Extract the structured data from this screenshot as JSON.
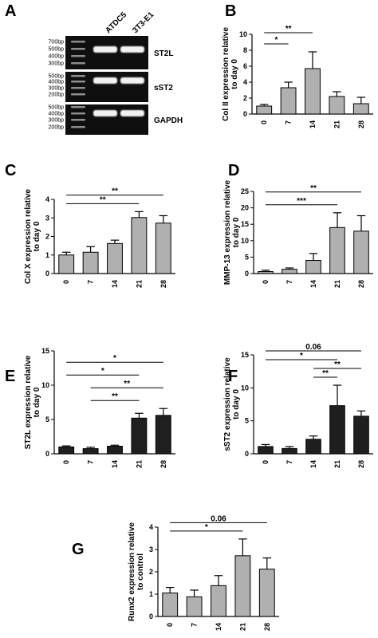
{
  "gel": {
    "letter": "A",
    "lanes": [
      "ATDC5",
      "3T3-E1"
    ],
    "blocks": [
      {
        "name": "ST2L",
        "ladder": [
          "700bp",
          "500bp",
          "400bp",
          "300bp"
        ]
      },
      {
        "name": "sST2",
        "ladder": [
          "500bp",
          "400bp",
          "300bp",
          "200bp"
        ]
      },
      {
        "name": "GAPDH",
        "ladder": [
          "500bp",
          "400bp",
          "300bp",
          "200bp"
        ]
      }
    ]
  },
  "colors": {
    "grey_bar": "#b0b0b0",
    "black_bar": "#1f1f1f",
    "gel_bg": "#0f0f0f"
  },
  "chart_data": [
    {
      "letter": "B",
      "type": "bar",
      "categories": [
        "0",
        "7",
        "14",
        "21",
        "28"
      ],
      "values": [
        1.0,
        3.3,
        5.7,
        2.2,
        1.3
      ],
      "errors": [
        0.2,
        0.7,
        2.1,
        0.6,
        0.8
      ],
      "ylabel_lines": [
        "Col II expression relative",
        "to day 0"
      ],
      "ylim": [
        0,
        10
      ],
      "yticks": [
        0,
        2,
        4,
        6,
        8,
        10
      ],
      "color": "grey",
      "significance": [
        {
          "from": 0,
          "to": 1,
          "label": "*"
        },
        {
          "from": 0,
          "to": 2,
          "label": "**"
        }
      ]
    },
    {
      "letter": "C",
      "type": "bar",
      "categories": [
        "0",
        "7",
        "14",
        "21",
        "28"
      ],
      "values": [
        1.0,
        1.15,
        1.62,
        3.02,
        2.72
      ],
      "errors": [
        0.15,
        0.3,
        0.18,
        0.32,
        0.4
      ],
      "ylabel_lines": [
        "Col X expression relative",
        "to day 0"
      ],
      "ylim": [
        0,
        4
      ],
      "yticks": [
        0,
        1,
        2,
        3,
        4
      ],
      "color": "grey",
      "significance": [
        {
          "from": 0,
          "to": 3,
          "label": "**"
        },
        {
          "from": 0,
          "to": 4,
          "label": "**"
        }
      ]
    },
    {
      "letter": "D",
      "type": "bar",
      "categories": [
        "0",
        "7",
        "14",
        "21",
        "28"
      ],
      "values": [
        0.6,
        1.3,
        4.0,
        14.0,
        12.9
      ],
      "errors": [
        0.4,
        0.4,
        2.1,
        4.5,
        4.7
      ],
      "ylabel_lines": [
        "MMP-13 expression relative",
        "to day 0"
      ],
      "ylim": [
        0,
        25
      ],
      "yticks": [
        0,
        5,
        10,
        15,
        20,
        25
      ],
      "color": "grey",
      "significance": [
        {
          "from": 0,
          "to": 3,
          "label": "***"
        },
        {
          "from": 0,
          "to": 4,
          "label": "**"
        }
      ]
    },
    {
      "letter": "E",
      "type": "bar",
      "categories": [
        "0",
        "7",
        "14",
        "21",
        "28"
      ],
      "values": [
        1.0,
        0.75,
        1.1,
        5.2,
        5.6
      ],
      "errors": [
        0.15,
        0.2,
        0.15,
        0.7,
        1.0
      ],
      "ylabel_lines": [
        "ST2L expression relative",
        "to day 0"
      ],
      "ylim": [
        0,
        15
      ],
      "yticks": [
        0,
        5,
        10,
        15
      ],
      "color": "black",
      "significance": [
        {
          "from": 1,
          "to": 3,
          "label": "**"
        },
        {
          "from": 1,
          "to": 4,
          "label": "**"
        },
        {
          "from": 0,
          "to": 3,
          "label": "*"
        },
        {
          "from": 0,
          "to": 4,
          "label": "*"
        }
      ]
    },
    {
      "letter": "F",
      "type": "bar",
      "categories": [
        "0",
        "7",
        "14",
        "21",
        "28"
      ],
      "values": [
        1.1,
        0.8,
        2.2,
        7.3,
        5.7
      ],
      "errors": [
        0.3,
        0.3,
        0.5,
        3.1,
        0.8
      ],
      "ylabel_lines": [
        "sST2 expression relative",
        "to day 0"
      ],
      "ylim": [
        0,
        15
      ],
      "yticks": [
        0,
        5,
        10,
        15
      ],
      "color": "black",
      "significance": [
        {
          "from": 2,
          "to": 3,
          "label": "**"
        },
        {
          "from": 2,
          "to": 4,
          "label": "**"
        },
        {
          "from": 0,
          "to": 3,
          "label": "*"
        },
        {
          "from": 0,
          "to": 4,
          "label": "0.06"
        }
      ]
    },
    {
      "letter": "G",
      "type": "bar",
      "categories": [
        "0",
        "7",
        "14",
        "21",
        "28"
      ],
      "values": [
        1.05,
        0.88,
        1.38,
        2.72,
        2.12
      ],
      "errors": [
        0.25,
        0.3,
        0.45,
        0.75,
        0.5
      ],
      "ylabel_lines": [
        "Runx2 expression relative",
        "to control"
      ],
      "ylim": [
        0,
        4
      ],
      "yticks": [
        0,
        1,
        2,
        3,
        4
      ],
      "color": "grey",
      "significance": [
        {
          "from": 0,
          "to": 3,
          "label": "*"
        },
        {
          "from": 0,
          "to": 4,
          "label": "0.06"
        }
      ]
    }
  ]
}
